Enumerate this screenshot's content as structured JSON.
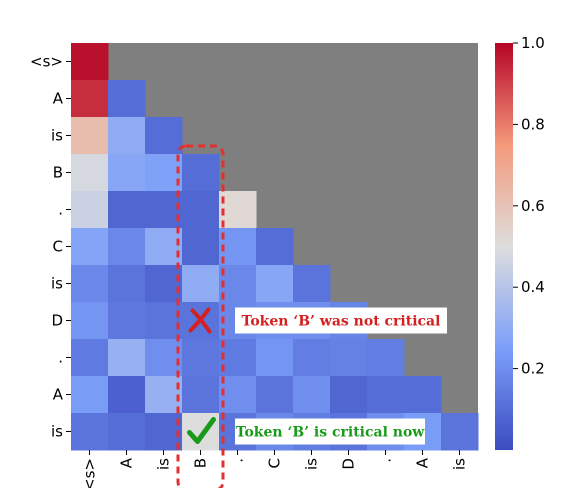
{
  "chart_data": {
    "type": "heatmap",
    "title": "",
    "xlabel": "",
    "ylabel": "",
    "tokens": [
      "<s>",
      "A",
      "is",
      "B",
      ".",
      "C",
      "is",
      "D",
      ".",
      "A",
      "is"
    ],
    "masked_color": "#7f7f7f",
    "colorscale": "coolwarm",
    "vmin": 0.0,
    "vmax": 1.0,
    "colorbar_ticks": [
      "1.0",
      "0.8",
      "0.6",
      "0.4",
      "0.2"
    ],
    "colorbar_tick_values": [
      1.0,
      0.8,
      0.6,
      0.4,
      0.2
    ],
    "values": [
      [
        0.98
      ],
      [
        0.93,
        0.1
      ],
      [
        0.62,
        0.3,
        0.1
      ],
      [
        0.48,
        0.28,
        0.26,
        0.1
      ],
      [
        0.45,
        0.08,
        0.08,
        0.08,
        0.52
      ],
      [
        0.27,
        0.18,
        0.3,
        0.08,
        0.22,
        0.1
      ],
      [
        0.18,
        0.12,
        0.08,
        0.3,
        0.18,
        0.28,
        0.12
      ],
      [
        0.22,
        0.13,
        0.12,
        0.12,
        0.18,
        0.2,
        0.2,
        0.17
      ],
      [
        0.14,
        0.32,
        0.2,
        0.13,
        0.14,
        0.22,
        0.15,
        0.16,
        0.15
      ],
      [
        0.24,
        0.06,
        0.32,
        0.12,
        0.2,
        0.12,
        0.2,
        0.08,
        0.1,
        0.1
      ],
      [
        0.12,
        0.1,
        0.08,
        0.5,
        0.12,
        0.18,
        0.15,
        0.12,
        0.2,
        0.24,
        0.12
      ]
    ],
    "annotations": [
      {
        "text": "Token ‘B’ was not critical",
        "color": "#d42020",
        "mark": "cross",
        "row": 7,
        "col": 3
      },
      {
        "text": "Token ‘B’ is critical now",
        "color": "#1a9a1a",
        "mark": "check",
        "row": 10,
        "col": 3
      }
    ],
    "highlight": {
      "column": 3,
      "from_row": 3,
      "to_row": 10,
      "style": "dashed",
      "color": "#e03030"
    }
  }
}
